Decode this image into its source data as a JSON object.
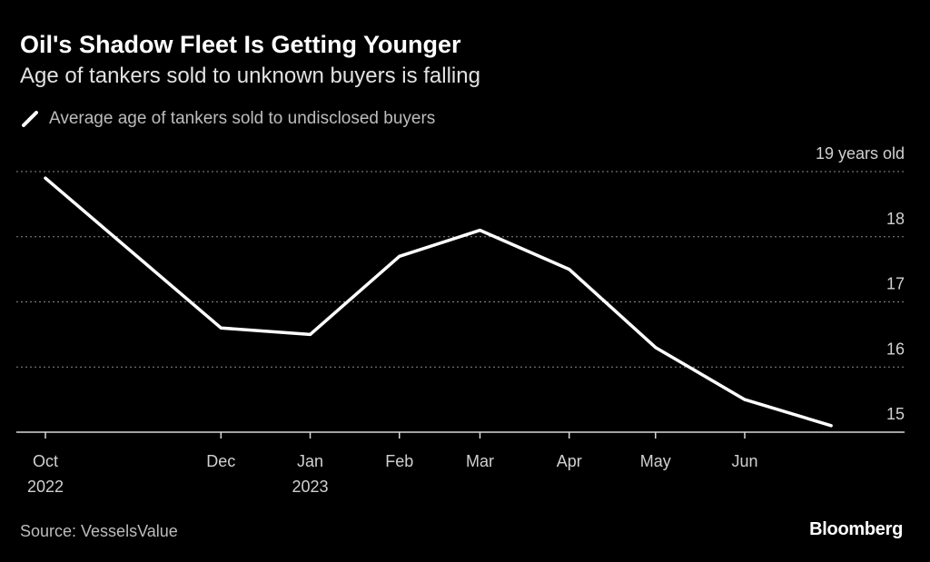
{
  "header": {
    "title": "Oil's Shadow Fleet Is Getting Younger",
    "subtitle": "Age of tankers sold to unknown buyers is falling"
  },
  "legend": {
    "label": "Average age of tankers sold to undisclosed buyers"
  },
  "footer": {
    "source": "Source: VesselsValue",
    "logo": "Bloomberg"
  },
  "colors": {
    "background": "#000000",
    "line": "#ffffff",
    "grid": "#8a8a8a"
  },
  "chart_data": {
    "type": "line",
    "title": "Oil's Shadow Fleet Is Getting Younger",
    "subtitle": "Age of tankers sold to unknown buyers is falling",
    "series": [
      {
        "name": "Average age of tankers sold to undisclosed buyers",
        "x": [
          "2022-10-01",
          "2022-12-01",
          "2023-01-01",
          "2023-02-01",
          "2023-03-01",
          "2023-04-01",
          "2023-05-01",
          "2023-06-01",
          "2023-07-01"
        ],
        "values": [
          18.9,
          16.6,
          16.5,
          17.7,
          18.1,
          17.5,
          16.3,
          15.5,
          15.1
        ]
      }
    ],
    "x_ticks": [
      {
        "date": "2022-10-01",
        "label": "Oct",
        "sublabel": "2022"
      },
      {
        "date": "2022-12-01",
        "label": "Dec",
        "sublabel": ""
      },
      {
        "date": "2023-01-01",
        "label": "Jan",
        "sublabel": "2023"
      },
      {
        "date": "2023-02-01",
        "label": "Feb",
        "sublabel": ""
      },
      {
        "date": "2023-03-01",
        "label": "Mar",
        "sublabel": ""
      },
      {
        "date": "2023-04-01",
        "label": "Apr",
        "sublabel": ""
      },
      {
        "date": "2023-05-01",
        "label": "May",
        "sublabel": ""
      },
      {
        "date": "2023-06-01",
        "label": "Jun",
        "sublabel": ""
      }
    ],
    "y_ticks": [
      {
        "value": 19,
        "label": "19 years old"
      },
      {
        "value": 18,
        "label": "18"
      },
      {
        "value": 17,
        "label": "17"
      },
      {
        "value": 16,
        "label": "16"
      },
      {
        "value": 15,
        "label": "15"
      }
    ],
    "ylim": [
      15,
      19
    ],
    "y_axis_side": "right",
    "grid": "horizontal-dotted",
    "legend_position": "top-left"
  }
}
